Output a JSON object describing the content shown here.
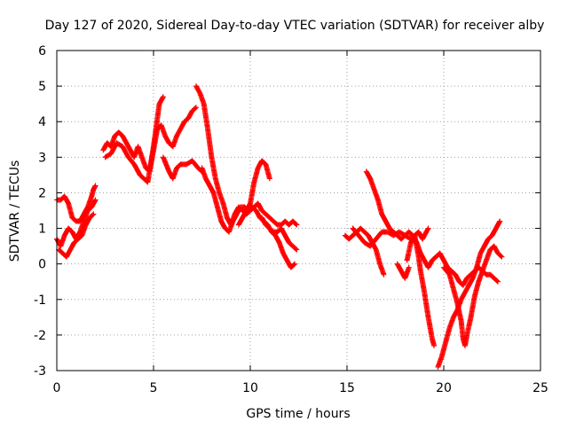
{
  "chart_data": {
    "type": "scatter",
    "title": "Day 127 of 2020, Sidereal Day-to-day VTEC variation (SDTVAR) for receiver alby",
    "xlabel": "GPS time / hours",
    "ylabel": "SDTVAR / TECUs",
    "xlim": [
      0,
      25
    ],
    "ylim": [
      -3,
      6
    ],
    "xticks": [
      "0",
      "5",
      "10",
      "15",
      "20",
      "25"
    ],
    "yticks": [
      "-3",
      "-2",
      "-1",
      "0",
      "1",
      "2",
      "3",
      "4",
      "5",
      "6"
    ],
    "grid": true,
    "marker": "+",
    "color": "#ff0000",
    "series": [
      {
        "name": "SDTVAR",
        "segments": [
          [
            [
              0.0,
              1.8
            ],
            [
              0.2,
              1.8
            ],
            [
              0.4,
              1.9
            ],
            [
              0.6,
              1.7
            ],
            [
              0.8,
              1.3
            ],
            [
              1.0,
              1.2
            ],
            [
              1.2,
              1.2
            ],
            [
              1.4,
              1.4
            ],
            [
              1.6,
              1.6
            ],
            [
              1.8,
              1.9
            ],
            [
              1.9,
              2.1
            ],
            [
              2.0,
              2.2
            ]
          ],
          [
            [
              0.0,
              0.7
            ],
            [
              0.2,
              0.5
            ],
            [
              0.4,
              0.8
            ],
            [
              0.6,
              1.0
            ],
            [
              0.8,
              0.9
            ],
            [
              1.0,
              0.7
            ],
            [
              1.2,
              0.9
            ],
            [
              1.4,
              1.2
            ],
            [
              1.6,
              1.5
            ],
            [
              1.8,
              1.6
            ],
            [
              2.0,
              1.8
            ]
          ],
          [
            [
              0.1,
              0.4
            ],
            [
              0.3,
              0.3
            ],
            [
              0.5,
              0.2
            ],
            [
              0.7,
              0.4
            ],
            [
              0.9,
              0.6
            ],
            [
              1.1,
              0.7
            ],
            [
              1.3,
              0.8
            ],
            [
              1.5,
              1.1
            ],
            [
              1.7,
              1.3
            ],
            [
              1.9,
              1.4
            ]
          ],
          [
            [
              2.4,
              3.2
            ],
            [
              2.6,
              3.4
            ],
            [
              2.8,
              3.3
            ],
            [
              3.0,
              3.6
            ],
            [
              3.2,
              3.7
            ],
            [
              3.4,
              3.6
            ],
            [
              3.6,
              3.4
            ],
            [
              3.8,
              3.2
            ],
            [
              4.0,
              3.0
            ],
            [
              4.2,
              3.3
            ],
            [
              4.4,
              3.0
            ],
            [
              4.6,
              2.7
            ],
            [
              4.8,
              2.6
            ],
            [
              5.0,
              3.2
            ],
            [
              5.2,
              3.8
            ],
            [
              5.4,
              3.9
            ],
            [
              5.6,
              3.6
            ],
            [
              5.8,
              3.4
            ],
            [
              6.0,
              3.3
            ],
            [
              6.2,
              3.6
            ],
            [
              6.4,
              3.8
            ],
            [
              6.6,
              4.0
            ],
            [
              6.8,
              4.1
            ],
            [
              7.0,
              4.3
            ],
            [
              7.2,
              4.4
            ]
          ],
          [
            [
              2.5,
              3.0
            ],
            [
              2.8,
              3.1
            ],
            [
              3.1,
              3.4
            ],
            [
              3.4,
              3.3
            ],
            [
              3.7,
              3.0
            ],
            [
              4.0,
              2.8
            ],
            [
              4.3,
              2.5
            ],
            [
              4.5,
              2.4
            ],
            [
              4.7,
              2.3
            ],
            [
              5.0,
              3.3
            ],
            [
              5.3,
              4.5
            ],
            [
              5.5,
              4.7
            ]
          ],
          [
            [
              5.5,
              3.0
            ],
            [
              5.8,
              2.6
            ],
            [
              6.0,
              2.4
            ],
            [
              6.2,
              2.7
            ],
            [
              6.4,
              2.8
            ],
            [
              6.7,
              2.8
            ],
            [
              7.0,
              2.9
            ],
            [
              7.3,
              2.7
            ],
            [
              7.5,
              2.6
            ]
          ],
          [
            [
              7.2,
              5.0
            ],
            [
              7.4,
              4.8
            ],
            [
              7.6,
              4.5
            ],
            [
              7.8,
              3.8
            ],
            [
              8.0,
              3.0
            ],
            [
              8.2,
              2.4
            ],
            [
              8.4,
              2.0
            ],
            [
              8.6,
              1.7
            ],
            [
              8.8,
              1.3
            ],
            [
              9.0,
              1.1
            ],
            [
              9.2,
              1.4
            ],
            [
              9.4,
              1.6
            ],
            [
              9.6,
              1.5
            ],
            [
              9.8,
              1.4
            ],
            [
              10.0,
              1.5
            ],
            [
              10.2,
              1.6
            ],
            [
              10.4,
              1.7
            ],
            [
              10.6,
              1.5
            ],
            [
              10.8,
              1.4
            ],
            [
              11.0,
              1.3
            ],
            [
              11.2,
              1.2
            ],
            [
              11.4,
              1.1
            ],
            [
              11.6,
              1.1
            ],
            [
              11.8,
              1.2
            ],
            [
              12.0,
              1.1
            ],
            [
              12.2,
              1.2
            ],
            [
              12.4,
              1.1
            ]
          ],
          [
            [
              7.5,
              2.7
            ],
            [
              7.7,
              2.4
            ],
            [
              7.9,
              2.2
            ],
            [
              8.1,
              2.0
            ],
            [
              8.3,
              1.6
            ],
            [
              8.5,
              1.2
            ],
            [
              8.7,
              1.0
            ],
            [
              8.9,
              0.9
            ],
            [
              9.1,
              1.2
            ],
            [
              9.3,
              1.4
            ],
            [
              9.5,
              1.6
            ],
            [
              9.7,
              1.6
            ],
            [
              9.9,
              1.5
            ],
            [
              10.1,
              1.6
            ],
            [
              10.3,
              1.5
            ],
            [
              10.5,
              1.3
            ],
            [
              10.7,
              1.2
            ],
            [
              10.9,
              1.1
            ],
            [
              11.1,
              0.9
            ],
            [
              11.3,
              0.8
            ],
            [
              11.5,
              0.6
            ],
            [
              11.7,
              0.3
            ],
            [
              11.9,
              0.1
            ],
            [
              12.1,
              -0.1
            ],
            [
              12.3,
              0.0
            ]
          ],
          [
            [
              9.4,
              1.1
            ],
            [
              9.6,
              1.3
            ],
            [
              9.8,
              1.5
            ],
            [
              10.0,
              1.7
            ],
            [
              10.2,
              2.3
            ],
            [
              10.4,
              2.7
            ],
            [
              10.6,
              2.9
            ],
            [
              10.8,
              2.8
            ],
            [
              11.0,
              2.4
            ]
          ],
          [
            [
              10.6,
              1.3
            ],
            [
              10.8,
              1.1
            ],
            [
              11.0,
              1.0
            ],
            [
              11.2,
              0.9
            ],
            [
              11.4,
              0.9
            ],
            [
              11.6,
              1.0
            ],
            [
              11.8,
              0.8
            ],
            [
              12.0,
              0.6
            ],
            [
              12.2,
              0.5
            ],
            [
              12.4,
              0.4
            ]
          ],
          [
            [
              14.9,
              0.8
            ],
            [
              15.1,
              0.7
            ],
            [
              15.3,
              0.8
            ],
            [
              15.5,
              0.9
            ],
            [
              15.7,
              1.0
            ],
            [
              15.9,
              0.9
            ],
            [
              16.1,
              0.8
            ],
            [
              16.3,
              0.6
            ],
            [
              16.5,
              0.4
            ],
            [
              16.7,
              0.0
            ],
            [
              16.9,
              -0.3
            ]
          ],
          [
            [
              15.3,
              1.0
            ],
            [
              15.6,
              0.8
            ],
            [
              15.9,
              0.6
            ],
            [
              16.2,
              0.5
            ],
            [
              16.5,
              0.7
            ],
            [
              16.8,
              0.9
            ],
            [
              17.1,
              0.9
            ],
            [
              17.4,
              0.8
            ],
            [
              17.7,
              0.9
            ],
            [
              18.0,
              0.8
            ],
            [
              18.3,
              0.7
            ],
            [
              18.5,
              0.8
            ],
            [
              18.7,
              0.9
            ],
            [
              18.9,
              0.7
            ],
            [
              19.2,
              1.0
            ]
          ],
          [
            [
              16.0,
              2.6
            ],
            [
              16.2,
              2.4
            ],
            [
              16.4,
              2.1
            ],
            [
              16.6,
              1.8
            ],
            [
              16.8,
              1.4
            ],
            [
              17.0,
              1.2
            ],
            [
              17.2,
              1.0
            ],
            [
              17.4,
              0.9
            ],
            [
              17.6,
              0.8
            ],
            [
              17.8,
              0.7
            ],
            [
              18.0,
              0.8
            ],
            [
              18.2,
              0.9
            ],
            [
              18.4,
              0.8
            ],
            [
              18.6,
              0.6
            ],
            [
              18.8,
              0.3
            ],
            [
              19.0,
              0.1
            ],
            [
              19.2,
              -0.1
            ],
            [
              19.4,
              0.1
            ],
            [
              19.6,
              0.2
            ],
            [
              19.8,
              0.3
            ],
            [
              20.0,
              0.1
            ],
            [
              20.2,
              -0.1
            ],
            [
              20.4,
              -0.2
            ],
            [
              20.6,
              -0.3
            ],
            [
              20.8,
              -0.5
            ],
            [
              21.0,
              -0.6
            ],
            [
              21.2,
              -0.4
            ],
            [
              21.4,
              -0.3
            ],
            [
              21.6,
              -0.2
            ],
            [
              21.8,
              -0.1
            ],
            [
              22.0,
              -0.2
            ],
            [
              22.2,
              -0.3
            ],
            [
              22.4,
              -0.3
            ],
            [
              22.6,
              -0.4
            ],
            [
              22.8,
              -0.5
            ]
          ],
          [
            [
              18.1,
              0.1
            ],
            [
              18.3,
              0.6
            ],
            [
              18.5,
              0.8
            ],
            [
              18.7,
              0.2
            ],
            [
              18.8,
              -0.2
            ],
            [
              19.0,
              -0.8
            ],
            [
              19.2,
              -1.5
            ],
            [
              19.4,
              -2.1
            ],
            [
              19.5,
              -2.3
            ]
          ],
          [
            [
              17.6,
              0.0
            ],
            [
              17.8,
              -0.2
            ],
            [
              18.0,
              -0.4
            ],
            [
              18.2,
              -0.1
            ]
          ],
          [
            [
              19.7,
              -2.9
            ],
            [
              19.9,
              -2.6
            ],
            [
              20.1,
              -2.2
            ],
            [
              20.3,
              -1.8
            ],
            [
              20.5,
              -1.5
            ],
            [
              20.7,
              -1.3
            ],
            [
              20.9,
              -1.0
            ],
            [
              21.1,
              -0.8
            ],
            [
              21.3,
              -0.6
            ],
            [
              21.5,
              -0.4
            ],
            [
              21.7,
              -0.1
            ],
            [
              21.9,
              0.3
            ],
            [
              22.1,
              0.5
            ],
            [
              22.3,
              0.7
            ],
            [
              22.5,
              0.8
            ],
            [
              22.7,
              1.0
            ],
            [
              22.9,
              1.2
            ]
          ],
          [
            [
              20.0,
              -0.1
            ],
            [
              20.3,
              -0.3
            ],
            [
              20.5,
              -0.7
            ],
            [
              20.7,
              -1.1
            ],
            [
              20.9,
              -1.6
            ],
            [
              21.0,
              -2.1
            ],
            [
              21.1,
              -2.3
            ],
            [
              21.2,
              -2.0
            ],
            [
              21.4,
              -1.5
            ],
            [
              21.6,
              -0.9
            ],
            [
              21.8,
              -0.5
            ],
            [
              22.0,
              -0.2
            ],
            [
              22.2,
              0.1
            ],
            [
              22.4,
              0.4
            ],
            [
              22.6,
              0.5
            ],
            [
              22.8,
              0.3
            ],
            [
              23.0,
              0.2
            ]
          ]
        ]
      }
    ]
  }
}
